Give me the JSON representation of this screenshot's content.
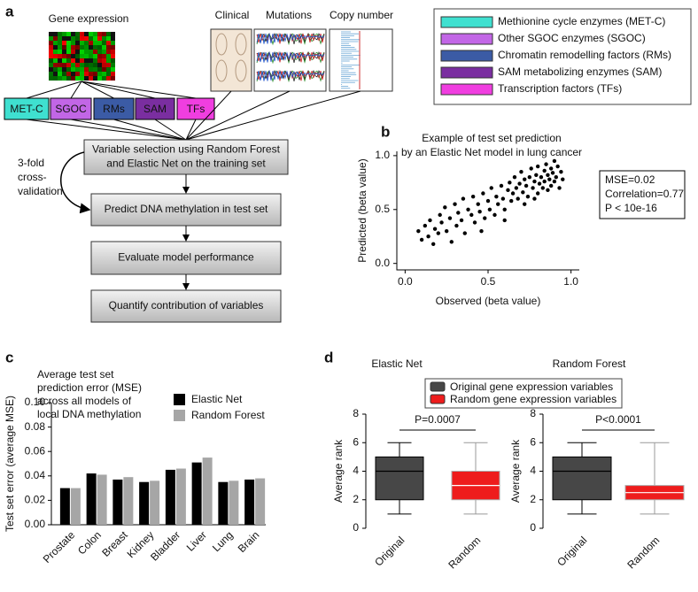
{
  "diagram": {
    "panel": "a",
    "sources": [
      "Gene expression",
      "Clinical",
      "Mutations",
      "Copy number"
    ],
    "gene_sets": [
      {
        "name": "MET-C",
        "color": "#3fe0d0"
      },
      {
        "name": "SGOC",
        "color": "#c266e6"
      },
      {
        "name": "RMs",
        "color": "#3b5ba5"
      },
      {
        "name": "SAM",
        "color": "#7a2ea0"
      },
      {
        "name": "TFs",
        "color": "#f03ee0"
      }
    ],
    "steps": [
      [
        "Variable selection using Random Forest",
        "and Elastic Net on the training set"
      ],
      [
        "Predict DNA methylation in test set"
      ],
      [
        "Evaluate model performance"
      ],
      [
        "Quantify contribution of variables"
      ]
    ],
    "cross_validation": [
      "3-fold",
      "cross-",
      "validation"
    ],
    "legend": [
      "Methionine cycle enzymes (MET-C)",
      "Other SGOC enzymes (SGOC)",
      "Chromatin remodelling factors (RMs)",
      "SAM metabolizing enzymes (SAM)",
      "Transcription factors (TFs)"
    ]
  },
  "chart_data": [
    {
      "type": "scatter",
      "panel": "b",
      "title": [
        "Example of test set prediction",
        "by an Elastic Net model in lung cancer"
      ],
      "x_label": "Observed (beta value)",
      "y_label": "Predicted (beta value)",
      "annotation": [
        "MSE=0.02",
        "Correlation=0.77",
        "P < 10e-16"
      ],
      "color": "#000000",
      "x": [
        0.08,
        0.1,
        0.12,
        0.14,
        0.15,
        0.17,
        0.18,
        0.2,
        0.21,
        0.22,
        0.24,
        0.25,
        0.27,
        0.28,
        0.3,
        0.31,
        0.32,
        0.34,
        0.35,
        0.36,
        0.38,
        0.4,
        0.41,
        0.42,
        0.44,
        0.45,
        0.47,
        0.48,
        0.5,
        0.51,
        0.52,
        0.54,
        0.55,
        0.56,
        0.58,
        0.59,
        0.6,
        0.62,
        0.63,
        0.64,
        0.65,
        0.66,
        0.67,
        0.68,
        0.69,
        0.7,
        0.71,
        0.72,
        0.73,
        0.74,
        0.75,
        0.76,
        0.77,
        0.78,
        0.79,
        0.8,
        0.8,
        0.81,
        0.82,
        0.83,
        0.84,
        0.84,
        0.85,
        0.86,
        0.86,
        0.87,
        0.88,
        0.88,
        0.89,
        0.9,
        0.9,
        0.91,
        0.92,
        0.93,
        0.94,
        0.95,
        0.72,
        0.78,
        0.6,
        0.46
      ],
      "values": [
        0.3,
        0.22,
        0.35,
        0.25,
        0.4,
        0.18,
        0.32,
        0.28,
        0.45,
        0.38,
        0.52,
        0.3,
        0.42,
        0.2,
        0.55,
        0.35,
        0.47,
        0.4,
        0.6,
        0.28,
        0.5,
        0.45,
        0.62,
        0.38,
        0.55,
        0.48,
        0.65,
        0.42,
        0.58,
        0.5,
        0.7,
        0.45,
        0.62,
        0.55,
        0.72,
        0.6,
        0.5,
        0.68,
        0.75,
        0.58,
        0.65,
        0.8,
        0.7,
        0.6,
        0.74,
        0.85,
        0.66,
        0.78,
        0.72,
        0.62,
        0.8,
        0.88,
        0.7,
        0.76,
        0.82,
        0.65,
        0.9,
        0.74,
        0.8,
        0.7,
        0.86,
        0.76,
        0.92,
        0.68,
        0.82,
        0.78,
        0.88,
        0.72,
        0.84,
        0.95,
        0.76,
        0.8,
        0.9,
        0.7,
        0.85,
        0.78,
        0.55,
        0.6,
        0.4,
        0.3
      ],
      "xlim": [
        -0.05,
        1.05
      ],
      "xticks": [
        {
          "value": 0,
          "label": "0.0"
        },
        0.5,
        {
          "value": 1,
          "label": "1.0"
        }
      ],
      "ylim": [
        -0.06,
        1.04
      ],
      "yticks": [
        {
          "value": 0,
          "label": "0.0"
        },
        0.5,
        {
          "value": 1,
          "label": "1.0"
        }
      ]
    },
    {
      "type": "bar",
      "panel": "c",
      "title": [
        "Average test set",
        "prediction error (MSE)",
        "across all models of",
        "local DNA methylation"
      ],
      "y_label": "Test set error (average MSE)",
      "categories": [
        "Prostate",
        "Colon",
        "Breast",
        "Kidney",
        "Bladder",
        "Liver",
        "Lung",
        "Brain"
      ],
      "series": [
        {
          "name": "Elastic Net",
          "color": "#000000",
          "values": [
            0.03,
            0.042,
            0.037,
            0.035,
            0.045,
            0.051,
            0.035,
            0.037
          ]
        },
        {
          "name": "Random Forest",
          "color": "#a6a6a6",
          "values": [
            0.03,
            0.041,
            0.039,
            0.036,
            0.046,
            0.055,
            0.036,
            0.038
          ]
        }
      ],
      "ylim": [
        0,
        0.1
      ],
      "yticks": [
        {
          "value": 0,
          "label": "0.00"
        },
        {
          "value": 0.02,
          "label": "0.02"
        },
        {
          "value": 0.04,
          "label": "0.04"
        },
        {
          "value": 0.06,
          "label": "0.06"
        },
        {
          "value": 0.08,
          "label": "0.08"
        },
        {
          "value": 0.1,
          "label": "0.10"
        }
      ]
    },
    {
      "type": "box",
      "panel": "d",
      "title": "Elastic Net",
      "y_label": "Average rank",
      "legend": [
        "Original gene expression variables",
        "Random gene expression variables"
      ],
      "colors": [
        "#474747",
        "#ee1c1c"
      ],
      "categories": [
        "Original",
        "Random"
      ],
      "boxes": [
        {
          "min": 1,
          "q1": 2,
          "median": 4,
          "q3": 5,
          "max": 6
        },
        {
          "min": 1,
          "q1": 2,
          "median": 3,
          "q3": 4,
          "max": 6
        }
      ],
      "annotation": "P=0.0007",
      "ylim": [
        0,
        8
      ],
      "yticks": [
        0,
        2,
        4,
        6,
        8
      ]
    },
    {
      "type": "box",
      "title": "Random Forest",
      "y_label": "Average rank",
      "colors": [
        "#474747",
        "#ee1c1c"
      ],
      "categories": [
        "Original",
        "Random"
      ],
      "boxes": [
        {
          "min": 1,
          "q1": 2,
          "median": 4,
          "q3": 5,
          "max": 6
        },
        {
          "min": 1,
          "q1": 2,
          "median": 2.5,
          "q3": 3,
          "max": 6
        }
      ],
      "annotation": "P<0.0001",
      "ylim": [
        0,
        8
      ],
      "yticks": [
        0,
        2,
        4,
        6,
        8
      ]
    }
  ]
}
